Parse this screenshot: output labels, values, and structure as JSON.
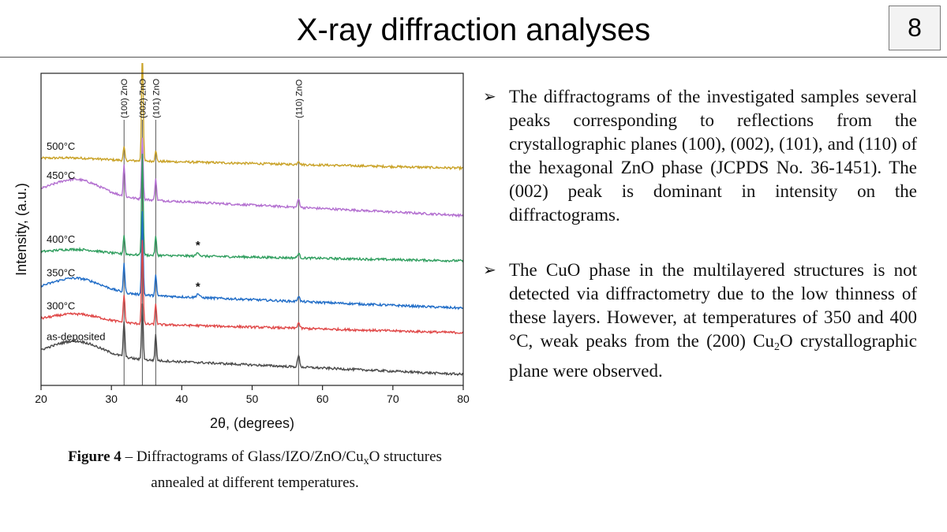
{
  "slide": {
    "title": "X-ray diffraction analyses",
    "page_number": "8"
  },
  "figure": {
    "caption_bold": "Figure 4",
    "caption_rest_1": " – Diffractograms of Glass/IZO/ZnO/Cu",
    "caption_sub": "x",
    "caption_rest_2": "O structures annealed at different temperatures."
  },
  "bullets": [
    {
      "text": "The diffractograms of the investigated samples several peaks corresponding to reflections from the crystallographic planes (100), (002), (101), and (110) of the hexagonal ZnO phase (JCPDS No. 36-1451). The (002) peak is dominant in intensity on the diffractograms."
    },
    {
      "text_a": "The CuO phase in the multilayered structures is not detected via diffractometry due to the low thinness of these layers. However, at temperatures of 350 and 400 °C, weak peaks from the (200) Cu",
      "sub": "2",
      "text_b": "O crystallographic plane were observed."
    }
  ],
  "chart_data": {
    "type": "line",
    "xlabel": "2θ, (degrees)",
    "ylabel": "Intensity, (a.u.)",
    "xlim": [
      20,
      80
    ],
    "xticks": [
      20,
      30,
      40,
      50,
      60,
      70,
      80
    ],
    "grid": false,
    "yticks_shown": false,
    "reference_lines": [
      {
        "x": 31.8,
        "label": "(100) ZnO"
      },
      {
        "x": 34.4,
        "label": "(002) ZnO"
      },
      {
        "x": 36.3,
        "label": "(101) ZnO"
      },
      {
        "x": 56.6,
        "label": "(110) ZnO"
      }
    ],
    "annotations": [
      {
        "text": "*",
        "x": 42.3,
        "series": "400°C"
      },
      {
        "text": "*",
        "x": 42.3,
        "series": "350°C"
      }
    ],
    "series": [
      {
        "name": "500°C",
        "color": "#c9a227",
        "baseline": 5.45,
        "slope": 0.25,
        "hump": 0.04,
        "peaks": [
          [
            31.8,
            0.35
          ],
          [
            34.4,
            3.0
          ],
          [
            36.3,
            0.3
          ],
          [
            56.6,
            0.1
          ]
        ],
        "minor_peaks": []
      },
      {
        "name": "450°C",
        "color": "#b36fd0",
        "baseline": 4.2,
        "slope": 0.55,
        "hump": 0.45,
        "peaks": [
          [
            31.8,
            0.85
          ],
          [
            34.4,
            1.6
          ],
          [
            36.3,
            0.6
          ],
          [
            56.6,
            0.22
          ]
        ],
        "minor_peaks": []
      },
      {
        "name": "400°C",
        "color": "#2f9e5e",
        "baseline": 3.0,
        "slope": 0.2,
        "hump": 0.12,
        "peaks": [
          [
            31.8,
            0.5
          ],
          [
            34.4,
            2.7
          ],
          [
            36.3,
            0.5
          ],
          [
            56.6,
            0.12
          ]
        ],
        "minor_peaks": [
          [
            42.3,
            0.1
          ]
        ]
      },
      {
        "name": "350°C",
        "color": "#1f6cc7",
        "baseline": 1.75,
        "slope": 0.45,
        "hump": 0.38,
        "peaks": [
          [
            31.8,
            0.75
          ],
          [
            34.4,
            2.2
          ],
          [
            36.3,
            0.55
          ],
          [
            56.6,
            0.15
          ]
        ],
        "minor_peaks": [
          [
            42.3,
            0.1
          ]
        ]
      },
      {
        "name": "300°C",
        "color": "#e04848",
        "baseline": 1.1,
        "slope": 0.3,
        "hump": 0.22,
        "peaks": [
          [
            31.8,
            0.75
          ],
          [
            34.4,
            2.2
          ],
          [
            36.3,
            0.55
          ],
          [
            56.6,
            0.15
          ]
        ],
        "minor_peaks": []
      },
      {
        "name": "as-deposited",
        "color": "#4a4a4a",
        "baseline": 0.0,
        "slope": 0.5,
        "hump": 0.42,
        "peaks": [
          [
            31.8,
            0.95
          ],
          [
            34.4,
            1.5
          ],
          [
            36.3,
            0.7
          ],
          [
            56.6,
            0.3
          ]
        ],
        "minor_peaks": []
      }
    ]
  }
}
